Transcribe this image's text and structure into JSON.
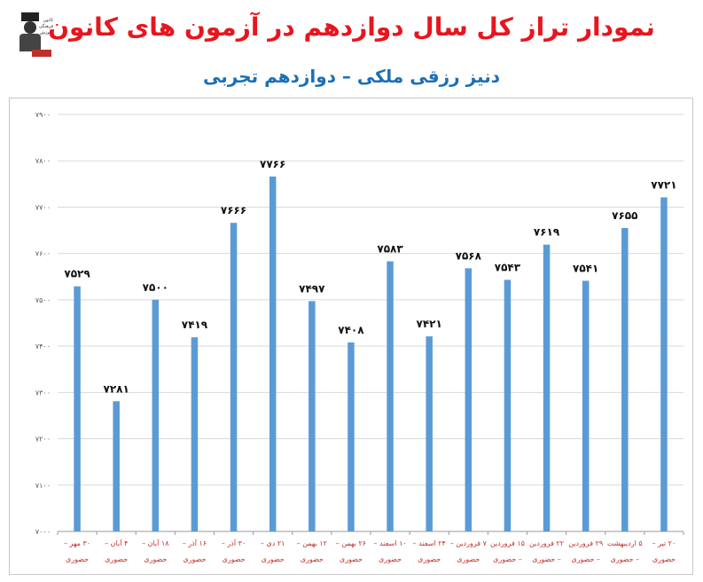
{
  "title": "نمودار تراز کل سال دوازدهم در آزمون های کانون",
  "subtitle": "دنیز رزقی ملکی – دوازدهم تجربی",
  "logo": {
    "lines": [
      "کانون",
      "فرهنگی",
      "آموزش"
    ]
  },
  "colors": {
    "title": "#e8151e",
    "subtitle": "#1b6fb5",
    "bar": "#5b9bd5",
    "axis_label": "#c0302b",
    "grid": "#d9d9d9"
  },
  "chart_data": {
    "type": "bar",
    "title": "نمودار تراز کل سال دوازدهم در آزمون های کانون",
    "subtitle": "دنیز رزقی ملکی – دوازدهم تجربی",
    "xlabel": "",
    "ylabel": "",
    "ylim": [
      7000,
      7900
    ],
    "yticks": [
      "۷۰۰۰",
      "۷۱۰۰",
      "۷۲۰۰",
      "۷۳۰۰",
      "۷۴۰۰",
      "۷۵۰۰",
      "۷۶۰۰",
      "۷۷۰۰",
      "۷۸۰۰",
      "۷۹۰۰"
    ],
    "grid": true,
    "categories": [
      [
        "۳۰ مهر –",
        "حضوری"
      ],
      [
        "۴ آبان –",
        "حضوری"
      ],
      [
        "۱۸ آبان –",
        "حضوری"
      ],
      [
        "۱۶ آذر –",
        "حضوری"
      ],
      [
        "۳۰ آذر –",
        "حضوری"
      ],
      [
        "۲۱ دی –",
        "حضوری"
      ],
      [
        "۱۲ بهمن –",
        "حضوری"
      ],
      [
        "۲۶ بهمن –",
        "حضوری"
      ],
      [
        "۱۰ اسفند –",
        "حضوری"
      ],
      [
        "۲۴ اسفند –",
        "حضوری"
      ],
      [
        "۷ فروردین –",
        "حضوری"
      ],
      [
        "۱۵ فروردین",
        "– حضوری"
      ],
      [
        "۲۲ فروردین",
        "– حضوری"
      ],
      [
        "۲۹ فروردین",
        "– حضوری"
      ],
      [
        "۵ اردیبهشت",
        "– حضوری"
      ],
      [
        "۲۰ تیر –",
        "حضوری"
      ]
    ],
    "values": [
      7529,
      7281,
      7500,
      7419,
      7666,
      7766,
      7497,
      7408,
      7583,
      7421,
      7568,
      7543,
      7619,
      7541,
      7655,
      7721
    ],
    "value_labels": [
      "۷۵۲۹",
      "۷۲۸۱",
      "۷۵۰۰",
      "۷۴۱۹",
      "۷۶۶۶",
      "۷۷۶۶",
      "۷۴۹۷",
      "۷۴۰۸",
      "۷۵۸۳",
      "۷۴۲۱",
      "۷۵۶۸",
      "۷۵۴۳",
      "۷۶۱۹",
      "۷۵۴۱",
      "۷۶۵۵",
      "۷۷۲۱"
    ]
  }
}
